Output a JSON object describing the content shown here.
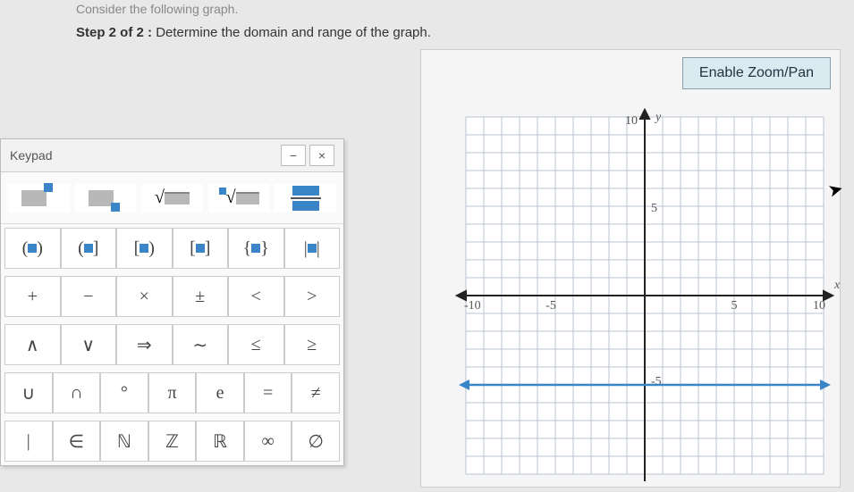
{
  "header": {
    "faded_text": "Consider the following graph.",
    "step_label": "Step 2 of 2 :",
    "step_instruction": "Determine the domain and range of the graph."
  },
  "zoom_button": "Enable Zoom/Pan",
  "keypad": {
    "title": "Keypad",
    "minimize": "−",
    "close": "×",
    "brackets": [
      "(■)",
      "(■]",
      "[■)",
      "[■]",
      "{■}",
      "|■|"
    ],
    "row_ops1": [
      "+",
      "−",
      "×",
      "±",
      "<",
      ">"
    ],
    "row_ops2": [
      "∧",
      "∨",
      "⇒",
      "∼",
      "≤",
      "≥"
    ],
    "row_ops3": [
      "∪",
      "∩",
      "°",
      "π",
      "e",
      "=",
      "≠"
    ],
    "row_ops4": [
      "|",
      "∈",
      "ℕ",
      "ℤ",
      "ℝ",
      "∞",
      "∅"
    ]
  },
  "graph": {
    "type": "coordinate-plane",
    "xlim": [
      -10,
      10
    ],
    "ylim": [
      -10,
      10
    ],
    "tick_step": 5,
    "grid_color": "#b8c4d0",
    "axis_color": "#222",
    "background_color": "#ffffff",
    "x_label": "x",
    "y_label": "y",
    "tick_labels_x": [
      -10,
      -5,
      5,
      10
    ],
    "tick_labels_y": [
      -5,
      5,
      10
    ],
    "line": {
      "y": -5,
      "color": "#3a84c8",
      "width": 2.5,
      "arrows": "both"
    }
  }
}
